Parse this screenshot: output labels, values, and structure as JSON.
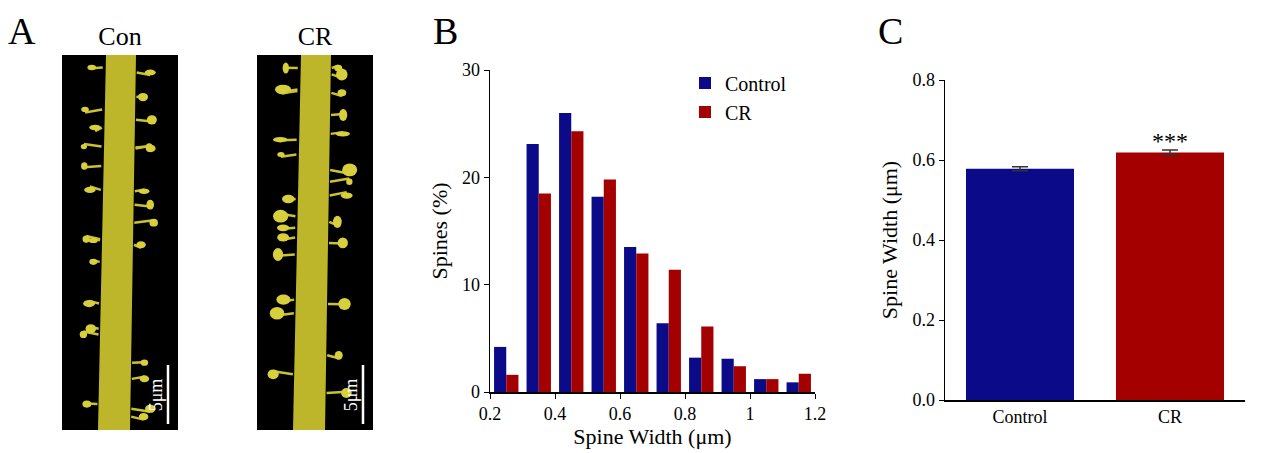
{
  "panel_a": {
    "label": "A",
    "images": [
      {
        "title": "Con",
        "scale_bar": "5μm"
      },
      {
        "title": "CR",
        "scale_bar": "5μm"
      }
    ]
  },
  "chart_data": [
    {
      "label": "B",
      "type": "bar",
      "x_label": "Spine Width (μm)",
      "y_label": "Spines (%)",
      "bins": [
        0.2,
        0.3,
        0.4,
        0.5,
        0.6,
        0.7,
        0.8,
        0.9,
        1.0,
        1.1,
        1.2
      ],
      "series": [
        {
          "name": "Control",
          "color": "#0b0b8a",
          "values": [
            4.2,
            23.1,
            26.0,
            18.2,
            13.5,
            6.4,
            3.2,
            3.1,
            1.2,
            0.9
          ]
        },
        {
          "name": "CR",
          "color": "#a50000",
          "values": [
            1.6,
            18.5,
            24.3,
            19.8,
            12.9,
            11.4,
            6.1,
            2.4,
            1.2,
            1.7
          ]
        }
      ],
      "xlim": [
        0.2,
        1.2
      ],
      "xticks": [
        0.2,
        0.4,
        0.6,
        0.8,
        1.0,
        1.2
      ],
      "ylim": [
        0,
        30
      ],
      "yticks": [
        0,
        10,
        20,
        30
      ],
      "legend": "top right",
      "grid": false
    },
    {
      "label": "C",
      "type": "bar",
      "y_label": "Spine Width (μm)",
      "categories": [
        "Control",
        "CR"
      ],
      "values": [
        0.578,
        0.619
      ],
      "errors": [
        0.005,
        0.006
      ],
      "colors": [
        "#0b0b8a",
        "#a50000"
      ],
      "ylim": [
        0,
        0.8
      ],
      "yticks": [
        {
          "value": 0,
          "label": "0.0"
        },
        0.2,
        0.4,
        0.6,
        0.8
      ],
      "annotations": [
        {
          "category": "CR",
          "text": "***"
        }
      ],
      "grid": false
    }
  ]
}
